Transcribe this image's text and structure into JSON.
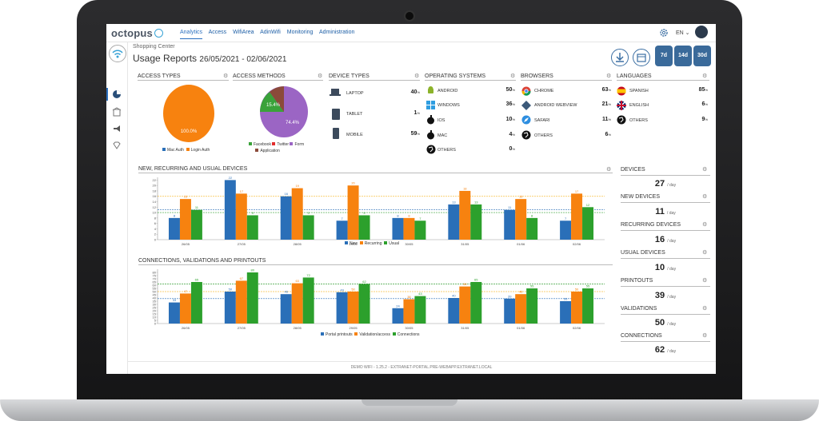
{
  "app": {
    "logo_text": "octopus",
    "nav": [
      "Analytics",
      "Access",
      "WifiArea",
      "AdinWifi",
      "Monitoring",
      "Administration"
    ],
    "language": "EN",
    "footer": "DEMO WIFI - 1.25.2 - EXTRANET-PORTAL.PRE-WEBAPP.EXTRANET.LOCAL"
  },
  "header": {
    "subtitle": "Shopping Center",
    "title": "Usage Reports",
    "date_range": "26/05/2021 - 02/06/2021",
    "ranges": [
      "7d",
      "14d",
      "30d"
    ]
  },
  "access_types": {
    "title": "ACCESS TYPES",
    "slices": [
      {
        "name": "Mac Auth",
        "value": 0,
        "color": "#2a6fb8"
      },
      {
        "name": "Login Auth",
        "value": 100,
        "color": "#f7820f"
      }
    ],
    "slice_label": "100.0%"
  },
  "access_methods": {
    "title": "ACCESS METHODS",
    "slices": [
      {
        "name": "Facebook",
        "value": 15.4,
        "color": "#3aa23a"
      },
      {
        "name": "Twitter",
        "value": 0,
        "color": "#e22c2c"
      },
      {
        "name": "Form",
        "value": 74.4,
        "color": "#9b65c4"
      },
      {
        "name": "Application",
        "value": 10.2,
        "color": "#8b4a3a"
      }
    ],
    "labels": [
      "15.4%",
      "74.4%"
    ]
  },
  "device_types": {
    "title": "DEVICE TYPES",
    "items": [
      {
        "label": "LAPTOP",
        "value": "40",
        "icon": "laptop-icon"
      },
      {
        "label": "TABLET",
        "value": "1",
        "icon": "tablet-icon"
      },
      {
        "label": "MOBILE",
        "value": "59",
        "icon": "mobile-icon"
      }
    ]
  },
  "operating_systems": {
    "title": "OPERATING SYSTEMS",
    "items": [
      {
        "label": "ANDROID",
        "value": "50",
        "icon": "android-icon"
      },
      {
        "label": "WINDOWS",
        "value": "36",
        "icon": "windows-icon"
      },
      {
        "label": "IOS",
        "value": "10",
        "icon": "apple-icon"
      },
      {
        "label": "MAC",
        "value": "4",
        "icon": "apple-icon"
      },
      {
        "label": "OTHERS",
        "value": "0",
        "icon": "globe-icon"
      }
    ]
  },
  "browsers": {
    "title": "BROWSERS",
    "items": [
      {
        "label": "CHROME",
        "value": "63",
        "icon": "chrome-icon"
      },
      {
        "label": "ANDROID WEBVIEW",
        "value": "21",
        "icon": "android-webview-icon"
      },
      {
        "label": "SAFARI",
        "value": "11",
        "icon": "safari-icon"
      },
      {
        "label": "OTHERS",
        "value": "6",
        "icon": "globe-icon"
      }
    ]
  },
  "languages": {
    "title": "LANGUAGES",
    "items": [
      {
        "label": "SPANISH",
        "value": "85",
        "icon": "spain-flag-icon"
      },
      {
        "label": "ENGLISH",
        "value": "6",
        "icon": "uk-flag-icon"
      },
      {
        "label": "OTHERS",
        "value": "9",
        "icon": "globe-icon"
      }
    ]
  },
  "pct_unit": "%",
  "stats": [
    {
      "label": "DEVICES",
      "value": "27",
      "unit": "/ day"
    },
    {
      "label": "NEW DEVICES",
      "value": "11",
      "unit": "/ day"
    },
    {
      "label": "RECURRING DEVICES",
      "value": "16",
      "unit": "/ day"
    },
    {
      "label": "USUAL DEVICES",
      "value": "10",
      "unit": "/ day"
    },
    {
      "label": "PRINTOUTS",
      "value": "39",
      "unit": "/ day"
    },
    {
      "label": "VALIDATIONS",
      "value": "50",
      "unit": "/ day"
    },
    {
      "label": "CONNECTIONS",
      "value": "62",
      "unit": "/ day"
    }
  ],
  "chart_data": [
    {
      "type": "bar",
      "title": "NEW, RECURRING AND USUAL DEVICES",
      "categories": [
        "26/05",
        "27/05",
        "28/05",
        "29/05",
        "30/05",
        "31/05",
        "01/06",
        "02/06"
      ],
      "series": [
        {
          "name": "New",
          "values": [
            8,
            22,
            16,
            7,
            8,
            13,
            11,
            7
          ],
          "color": "#2a6fb8"
        },
        {
          "name": "Recurring",
          "values": [
            15,
            17,
            19,
            20,
            8,
            18,
            15,
            17
          ],
          "color": "#f7820f"
        },
        {
          "name": "Usual",
          "values": [
            11,
            9,
            9,
            9,
            7,
            13,
            8,
            12
          ],
          "color": "#2ca02c"
        }
      ],
      "ylim": [
        0,
        23
      ],
      "yticks": [
        0,
        2,
        4,
        6,
        8,
        10,
        12,
        14,
        16,
        18,
        20,
        22
      ],
      "avg_lines": [
        {
          "value": 16,
          "color": "#f7c045"
        },
        {
          "value": 11,
          "color": "#2a6fb8"
        },
        {
          "value": 10,
          "color": "#3aa23a"
        }
      ]
    },
    {
      "type": "bar",
      "title": "CONNECTIONS, VALIDATIONS AND PRINTOUTS",
      "categories": [
        "26/05",
        "27/05",
        "28/05",
        "29/05",
        "30/05",
        "31/05",
        "01/06",
        "02/06"
      ],
      "series": [
        {
          "name": "Portal printouts",
          "values": [
            33,
            50,
            46,
            49,
            24,
            40,
            39,
            35
          ],
          "color": "#2a6fb8"
        },
        {
          "name": "Validation/access",
          "values": [
            47,
            67,
            63,
            50,
            38,
            58,
            46,
            50
          ],
          "color": "#f7820f"
        },
        {
          "name": "Connections",
          "values": [
            65,
            80,
            72,
            62,
            43,
            65,
            55,
            55
          ],
          "color": "#2ca02c"
        }
      ],
      "ylim": [
        0,
        85
      ],
      "yticks": [
        0,
        5,
        10,
        15,
        20,
        25,
        30,
        35,
        40,
        45,
        50,
        55,
        60,
        65,
        70,
        75,
        80
      ],
      "avg_lines": [
        {
          "value": 62,
          "color": "#3aa23a"
        },
        {
          "value": 50,
          "color": "#f7c045"
        },
        {
          "value": 39,
          "color": "#2a6fb8"
        }
      ]
    }
  ]
}
